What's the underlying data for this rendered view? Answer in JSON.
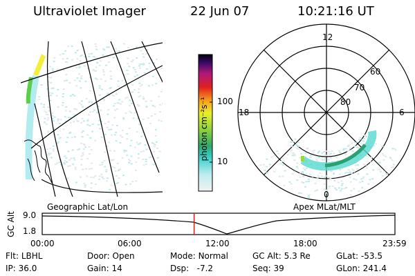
{
  "header": {
    "instrument": "Ultraviolet Imager",
    "date": "22 Jun 07",
    "time": "10:21:16 UT"
  },
  "colorbar": {
    "unit_label": "photon cm⁻²s⁻¹",
    "ticks": [
      "100",
      "10"
    ]
  },
  "polar_plot": {
    "mlt_labels": [
      "12",
      "18",
      "6",
      "0"
    ],
    "lat_labels": [
      "60",
      "70",
      "80"
    ]
  },
  "labels": {
    "left_caption": "Geographic Lat/Lon",
    "right_caption": "Apex MLat/MLT"
  },
  "altitude_plot": {
    "ylabel": "GC Alt",
    "yticks": [
      "9.0",
      "1.8"
    ],
    "xticks": [
      "00:00",
      "06:00",
      "12:00",
      "18:00",
      "23:59"
    ],
    "current_time_fraction": 0.4307
  },
  "status": {
    "row1": [
      {
        "k": "Flt:",
        "v": "LBHL"
      },
      {
        "k": "Door:",
        "v": "Open"
      },
      {
        "k": "Mode:",
        "v": "Normal"
      },
      {
        "k": "GC Alt:",
        "v": "5.3 Re"
      },
      {
        "k": "GLat:",
        "v": "-53.5"
      }
    ],
    "row2": [
      {
        "k": "IP:",
        "v": "36.0"
      },
      {
        "k": "Gain:",
        "v": "14"
      },
      {
        "k": "Dsp:",
        "v": "  -7.2"
      },
      {
        "k": "Seq:",
        "v": "39"
      },
      {
        "k": "GLon:",
        "v": "241.4"
      }
    ]
  }
}
